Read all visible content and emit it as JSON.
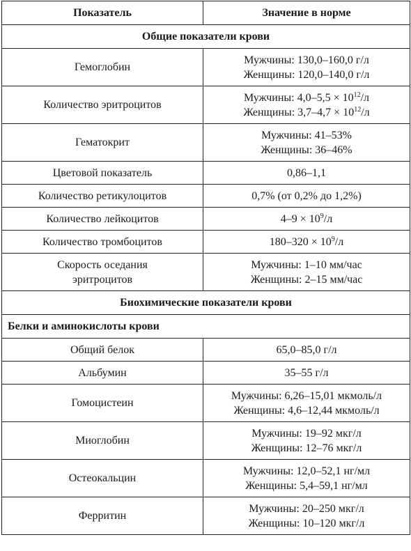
{
  "header": {
    "col1": "Показатель",
    "col2": "Значение в норме"
  },
  "sections": {
    "general": "Общие показатели крови",
    "biochem": "Биохимические показатели крови",
    "proteins": "Белки и аминокислоты крови"
  },
  "rows": [
    {
      "name": "Гемоглобин",
      "v1": "Мужчины: 130,0–160,0 г/л",
      "v2": "Женщины: 120,0–140,0 г/л"
    },
    {
      "name": "Количество эритроцитов",
      "v1a": "Мужчины: 4,0–5,5 × 10",
      "v1sup": "12",
      "v1b": "/л",
      "v2a": "Женщины: 3,7–4,7 × 10",
      "v2sup": "12",
      "v2b": "/л"
    },
    {
      "name": "Гематокрит",
      "v1": "Мужчины: 41–53%",
      "v2": "Женщины: 36–46%"
    },
    {
      "name": "Цветовой показатель",
      "v": "0,86–1,1"
    },
    {
      "name": "Количество ретикулоцитов",
      "v": "0,7% (от 0,2% до 1,2%)"
    },
    {
      "name": "Количество лейкоцитов",
      "va": "4–9 × 10",
      "vsup": "9",
      "vb": "/л"
    },
    {
      "name": "Количество тромбоцитов",
      "va": "180–320 × 10",
      "vsup": "9",
      "vb": "/л"
    },
    {
      "name1": "Скорость оседания",
      "name2": "эритроцитов",
      "v1": "Мужчины: 1–10 мм/час",
      "v2": "Женщины: 2–15 мм/час"
    },
    {
      "name": "Общий белок",
      "v": "65,0–85,0 г/л"
    },
    {
      "name": "Альбумин",
      "v": "35–55 г/л"
    },
    {
      "name": "Гомоцистеин",
      "v1": "Мужчины: 6,26–15,01 мкмоль/л",
      "v2": "Женщины: 4,6–12,44 мкмоль/л"
    },
    {
      "name": "Миоглобин",
      "v1": "Мужчины: 19–92 мкг/л",
      "v2": "Женщины: 12–76 мкг/л"
    },
    {
      "name": "Остеокальцин",
      "v1": "Мужчины: 12,0–52,1 нг/мл",
      "v2": "Женщины: 5,4–59,1 нг/мл"
    },
    {
      "name": "Ферритин",
      "v1": "Мужчины: 20–250 мкг/л",
      "v2": "Женщины: 10–120 мкг/л"
    }
  ]
}
